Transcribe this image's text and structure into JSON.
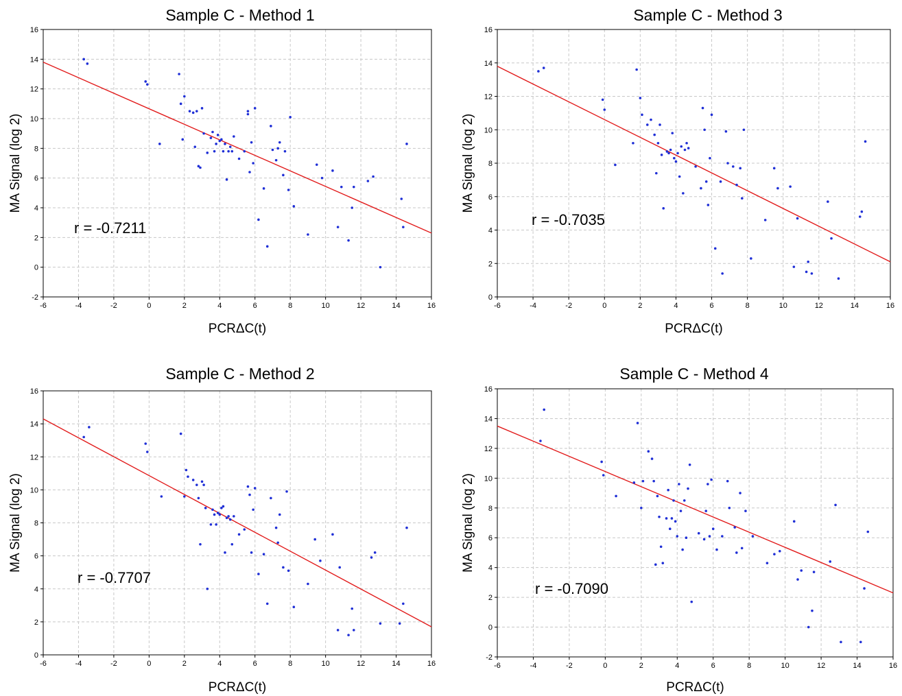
{
  "chart_data": [
    {
      "type": "scatter",
      "title": "Sample C - Method 1",
      "xlabel": "PCRΔC(t)",
      "ylabel": "MA Signal (log 2)",
      "xlim": [
        -6,
        16
      ],
      "ylim": [
        -2,
        16
      ],
      "xticks": [
        -6,
        -4,
        -2,
        0,
        2,
        4,
        6,
        8,
        10,
        12,
        14,
        16
      ],
      "yticks": [
        -2,
        0,
        2,
        4,
        6,
        8,
        10,
        12,
        14,
        16
      ],
      "grid": true,
      "annotation": "r = -0.7211",
      "fit_line": [
        [
          -6,
          13.8
        ],
        [
          16,
          2.3
        ]
      ],
      "series": [
        {
          "x": [
            -3.7,
            -3.5,
            -0.2,
            -0.1,
            0.6,
            1.7,
            1.8,
            1.9,
            2.0,
            2.3,
            2.5,
            2.6,
            2.7,
            2.8,
            2.9,
            3.0,
            3.1,
            3.3,
            3.5,
            3.6,
            3.7,
            3.8,
            3.9,
            4.0,
            4.1,
            4.2,
            4.3,
            4.4,
            4.5,
            4.6,
            4.7,
            4.8,
            5.1,
            5.4,
            5.6,
            5.6,
            5.7,
            5.8,
            5.9,
            6.0,
            6.2,
            6.5,
            6.7,
            6.9,
            7.0,
            7.2,
            7.3,
            7.4,
            7.6,
            7.7,
            7.9,
            8.0,
            8.2,
            9.0,
            9.5,
            9.8,
            10.4,
            10.7,
            10.9,
            11.3,
            11.5,
            11.6,
            12.4,
            12.7,
            13.1,
            14.3,
            14.4,
            14.6
          ],
          "y": [
            14.0,
            13.7,
            12.5,
            12.3,
            8.3,
            13.0,
            11.0,
            8.6,
            11.5,
            10.5,
            10.4,
            8.1,
            10.5,
            6.8,
            6.7,
            10.7,
            9.0,
            7.7,
            8.7,
            9.1,
            7.8,
            8.3,
            8.9,
            8.5,
            8.6,
            7.8,
            8.3,
            5.9,
            7.8,
            8.1,
            7.8,
            8.8,
            7.3,
            7.8,
            10.3,
            10.5,
            6.4,
            8.4,
            7.0,
            10.7,
            3.2,
            5.3,
            1.4,
            9.5,
            7.9,
            7.2,
            8.0,
            8.4,
            6.2,
            7.8,
            5.2,
            10.1,
            4.1,
            2.2,
            6.9,
            6.0,
            6.5,
            2.7,
            5.4,
            1.8,
            4.0,
            5.4,
            5.8,
            6.1,
            0.0,
            4.6,
            2.7,
            8.3
          ]
        }
      ]
    },
    {
      "type": "scatter",
      "title": "Sample C - Method 3",
      "xlabel": "PCRΔC(t)",
      "ylabel": "MA Signal (log 2)",
      "xlim": [
        -6,
        16
      ],
      "ylim": [
        0,
        16
      ],
      "xticks": [
        -6,
        -4,
        -2,
        0,
        2,
        4,
        6,
        8,
        10,
        12,
        14,
        16
      ],
      "yticks": [
        0,
        2,
        4,
        6,
        8,
        10,
        12,
        14,
        16
      ],
      "grid": true,
      "annotation": "r = -0.7035",
      "fit_line": [
        [
          -6,
          13.8
        ],
        [
          16,
          2.1
        ]
      ],
      "series": [
        {
          "x": [
            -3.7,
            -3.4,
            -0.1,
            0.0,
            0.6,
            1.6,
            1.8,
            2.0,
            2.1,
            2.4,
            2.6,
            2.8,
            2.9,
            3.0,
            3.1,
            3.2,
            3.3,
            3.5,
            3.6,
            3.7,
            3.8,
            3.9,
            4.0,
            4.1,
            4.2,
            4.3,
            4.4,
            4.5,
            4.6,
            4.7,
            5.1,
            5.4,
            5.5,
            5.6,
            5.7,
            5.8,
            5.9,
            6.0,
            6.2,
            6.5,
            6.6,
            6.8,
            6.9,
            7.2,
            7.4,
            7.6,
            7.7,
            7.8,
            8.2,
            9.0,
            9.5,
            9.7,
            10.4,
            10.6,
            10.8,
            11.3,
            11.4,
            11.6,
            12.5,
            12.7,
            13.1,
            14.3,
            14.4,
            14.6
          ],
          "y": [
            13.5,
            13.7,
            11.8,
            11.2,
            7.9,
            9.2,
            13.6,
            11.9,
            10.9,
            10.3,
            10.6,
            9.7,
            7.4,
            9.2,
            10.3,
            8.5,
            5.3,
            8.7,
            8.6,
            8.8,
            9.8,
            8.3,
            8.1,
            8.6,
            7.2,
            9.0,
            6.2,
            8.8,
            9.2,
            8.9,
            7.8,
            6.5,
            11.3,
            10.0,
            6.9,
            5.5,
            8.3,
            10.9,
            2.9,
            6.9,
            1.4,
            9.9,
            8.0,
            7.8,
            6.7,
            7.7,
            5.9,
            10.0,
            2.3,
            4.6,
            7.7,
            6.5,
            6.6,
            1.8,
            4.7,
            1.5,
            2.1,
            1.4,
            5.7,
            3.5,
            1.1,
            4.8,
            5.1,
            9.3
          ]
        }
      ]
    },
    {
      "type": "scatter",
      "title": "Sample C - Method 2",
      "xlabel": "PCRΔC(t)",
      "ylabel": "MA Signal (log 2)",
      "xlim": [
        -6,
        16
      ],
      "ylim": [
        0,
        16
      ],
      "xticks": [
        -6,
        -4,
        -2,
        0,
        2,
        4,
        6,
        8,
        10,
        12,
        14,
        16
      ],
      "yticks": [
        0,
        2,
        4,
        6,
        8,
        10,
        12,
        14,
        16
      ],
      "grid": true,
      "annotation": "r = -0.7707",
      "fit_line": [
        [
          -6,
          14.3
        ],
        [
          16,
          1.7
        ]
      ],
      "series": [
        {
          "x": [
            -3.7,
            -3.4,
            -0.2,
            -0.1,
            0.7,
            1.8,
            2.0,
            2.1,
            2.2,
            2.5,
            2.7,
            2.8,
            2.9,
            3.0,
            3.1,
            3.2,
            3.3,
            3.5,
            3.6,
            3.7,
            3.8,
            3.9,
            4.0,
            4.1,
            4.2,
            4.3,
            4.4,
            4.5,
            4.6,
            4.7,
            4.8,
            5.1,
            5.4,
            5.6,
            5.7,
            5.8,
            5.9,
            6.0,
            6.2,
            6.5,
            6.7,
            6.9,
            7.2,
            7.3,
            7.4,
            7.6,
            7.8,
            7.9,
            8.2,
            9.0,
            9.4,
            9.7,
            10.4,
            10.7,
            10.8,
            11.3,
            11.5,
            11.6,
            12.6,
            12.8,
            13.1,
            14.2,
            14.4,
            14.6
          ],
          "y": [
            13.2,
            13.8,
            12.8,
            12.3,
            9.6,
            13.4,
            9.6,
            11.2,
            10.8,
            10.6,
            10.3,
            9.5,
            6.7,
            10.5,
            10.3,
            8.9,
            4.0,
            7.9,
            8.8,
            8.5,
            7.9,
            8.6,
            8.5,
            8.9,
            9.0,
            6.2,
            8.3,
            8.4,
            8.2,
            6.7,
            8.4,
            7.3,
            7.6,
            10.2,
            9.7,
            6.2,
            8.8,
            10.1,
            4.9,
            6.1,
            3.1,
            9.5,
            7.7,
            6.8,
            8.5,
            5.3,
            9.9,
            5.1,
            2.9,
            4.3,
            7.0,
            5.7,
            7.3,
            1.5,
            5.3,
            1.2,
            2.8,
            1.5,
            5.9,
            6.2,
            1.9,
            1.9,
            3.1,
            7.7
          ]
        }
      ]
    },
    {
      "type": "scatter",
      "title": "Sample C - Method 4",
      "xlabel": "PCRΔC(t)",
      "ylabel": "MA Signal (log 2)",
      "xlim": [
        -6,
        16
      ],
      "ylim": [
        -2,
        16
      ],
      "xticks": [
        -6,
        -4,
        -2,
        0,
        2,
        4,
        6,
        8,
        10,
        12,
        14,
        16
      ],
      "yticks": [
        -2,
        0,
        2,
        4,
        6,
        8,
        10,
        12,
        14,
        16
      ],
      "grid": true,
      "annotation": "r = -0.7090",
      "fit_line": [
        [
          -6,
          13.5
        ],
        [
          16,
          2.3
        ]
      ],
      "series": [
        {
          "x": [
            -3.6,
            -3.4,
            -0.2,
            -0.1,
            0.6,
            1.6,
            1.8,
            2.0,
            2.1,
            2.4,
            2.6,
            2.7,
            2.8,
            2.9,
            3.0,
            3.1,
            3.2,
            3.4,
            3.5,
            3.6,
            3.7,
            3.8,
            3.9,
            4.0,
            4.1,
            4.2,
            4.3,
            4.4,
            4.5,
            4.6,
            4.7,
            4.8,
            5.2,
            5.5,
            5.6,
            5.7,
            5.8,
            5.9,
            6.0,
            6.2,
            6.5,
            6.8,
            6.9,
            7.2,
            7.3,
            7.5,
            7.6,
            7.8,
            8.2,
            9.0,
            9.4,
            9.7,
            10.5,
            10.7,
            10.9,
            11.3,
            11.5,
            11.6,
            12.5,
            12.8,
            13.1,
            14.2,
            14.4,
            14.6
          ],
          "y": [
            12.5,
            14.6,
            11.1,
            10.2,
            8.8,
            9.7,
            13.7,
            8.0,
            9.8,
            11.8,
            11.3,
            9.8,
            4.2,
            8.8,
            7.4,
            5.4,
            4.3,
            7.3,
            9.2,
            6.6,
            7.3,
            8.5,
            7.1,
            6.1,
            9.6,
            7.8,
            5.2,
            8.5,
            6.0,
            9.3,
            10.9,
            1.7,
            6.3,
            5.9,
            7.8,
            9.6,
            6.1,
            9.9,
            6.6,
            5.2,
            6.1,
            9.8,
            8.0,
            6.7,
            5.0,
            9.0,
            5.3,
            7.8,
            6.1,
            4.3,
            4.9,
            5.1,
            7.1,
            3.2,
            3.8,
            0.0,
            1.1,
            3.7,
            4.4,
            8.2,
            -1.0,
            -1.0,
            2.6,
            6.4
          ]
        }
      ]
    }
  ]
}
